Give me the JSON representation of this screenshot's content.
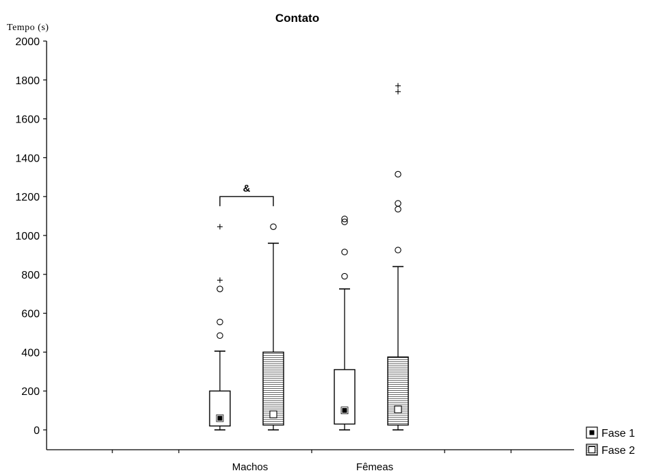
{
  "chart_data": {
    "type": "box",
    "title": "Contato",
    "ylabel": "Tempo (s)",
    "xlabel": "",
    "ylim": [
      -100,
      2000
    ],
    "yticks": [
      0,
      200,
      400,
      600,
      800,
      1000,
      1200,
      1400,
      1600,
      1800,
      2000
    ],
    "categories": [
      "Machos",
      "Fêmeas"
    ],
    "series": [
      {
        "name": "Fase 1",
        "fill": "plain",
        "marker": "filled-square"
      },
      {
        "name": "Fase 2",
        "fill": "horizontal-hatch",
        "marker": "open-square"
      }
    ],
    "boxes": [
      {
        "category": "Machos",
        "series": "Fase 1",
        "min": 0,
        "q1": 20,
        "median": 60,
        "q3": 200,
        "max": 405,
        "outliers": [
          485,
          555,
          725
        ],
        "extremes": [
          770,
          1045
        ]
      },
      {
        "category": "Machos",
        "series": "Fase 2",
        "min": 0,
        "q1": 25,
        "median": 80,
        "q3": 400,
        "max": 960,
        "outliers": [
          1045
        ],
        "extremes": []
      },
      {
        "category": "Fêmeas",
        "series": "Fase 1",
        "min": 0,
        "q1": 30,
        "median": 100,
        "q3": 310,
        "max": 725,
        "outliers": [
          790,
          915,
          1070,
          1085
        ],
        "extremes": []
      },
      {
        "category": "Fêmeas",
        "series": "Fase 2",
        "min": 0,
        "q1": 25,
        "median": 105,
        "q3": 375,
        "max": 840,
        "outliers": [
          925,
          1135,
          1165,
          1315
        ],
        "extremes": [
          1740,
          1770
        ]
      }
    ],
    "annotations": [
      {
        "text": "&",
        "category": "Machos",
        "spans": [
          "Fase 1",
          "Fase 2"
        ],
        "y": 1200
      }
    ],
    "legend": {
      "position": "bottom-right",
      "entries": [
        "Fase 1",
        "Fase 2"
      ]
    },
    "grid": false
  }
}
